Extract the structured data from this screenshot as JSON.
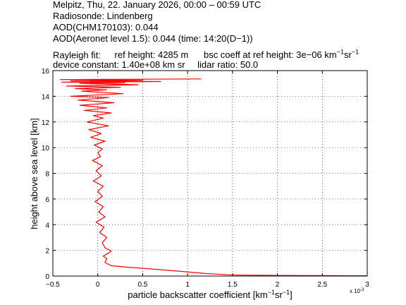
{
  "header": {
    "line1": "Melpitz, Thu, 22. January 2026, 00:00 – 00:59 UTC",
    "line2": "Radiosonde: Lindenberg",
    "line3": "AOD(CHM170103): 0.044",
    "line4": "AOD(Aeronet level 1.5): 0.044   (time: 14:20(D−1))",
    "rayleigh_label": "Rayleigh fit:",
    "ref_height": "ref height: 4285 m",
    "bsc_coeff_text": "bsc coeff at ref height: 3e−06 km",
    "bsc_unit_km_exp": "−1",
    "bsc_unit_sr": "sr",
    "bsc_unit_sr_exp": "−1",
    "device_constant": "device constant: 1.40e+08 km sr",
    "lidar_ratio": "lidar ratio: 50.0"
  },
  "chart_data": {
    "type": "line",
    "xlabel_main": "particle backscatter coefficient [km",
    "xlabel_exp1": "−1",
    "xlabel_mid": "sr",
    "xlabel_exp2": "−1",
    "xlabel_end": "]",
    "ylabel": "height above sea level [km]",
    "x_multiplier": "x 10",
    "x_multiplier_exp": "-3",
    "xlim": [
      -0.5,
      3
    ],
    "ylim": [
      0,
      16
    ],
    "xticks": [
      "−0.5",
      "0",
      "0.5",
      "1",
      "1.5",
      "2",
      "2.5",
      "3"
    ],
    "xtick_values": [
      -0.5,
      0,
      0.5,
      1,
      1.5,
      2,
      2.5,
      3
    ],
    "yticks": [
      "0",
      "2",
      "4",
      "6",
      "8",
      "10",
      "12",
      "14",
      "16"
    ],
    "ytick_values": [
      0,
      2,
      4,
      6,
      8,
      10,
      12,
      14,
      16
    ],
    "grid": true,
    "line_color": "#ff0000",
    "series": [
      {
        "x": [
          3.0,
          2.5,
          2.0,
          1.6,
          1.45,
          1.2,
          0.9,
          0.6,
          0.35,
          0.15,
          0.08,
          0.1,
          0.06,
          0.12,
          0.15,
          0.08,
          0.05,
          0.1,
          0.02,
          0.07,
          -0.02,
          0.08,
          0.01,
          0.06,
          -0.03,
          0.05,
          0.0,
          0.06,
          -0.05,
          0.04,
          -0.02,
          0.05,
          -0.06,
          0.03,
          0.0,
          0.05,
          -0.04,
          0.08,
          -0.08,
          0.04,
          -0.1,
          0.12,
          -0.12,
          0.06,
          -0.05,
          0.15,
          -0.15,
          0.1,
          -0.2,
          0.18,
          -0.22,
          0.12,
          -0.3,
          0.28,
          -0.18,
          0.1,
          -0.25,
          0.25,
          -0.35,
          0.45,
          -0.2,
          0.3,
          -0.4,
          0.7,
          -0.3,
          0.5,
          -0.42,
          1.15
        ],
        "y": [
          0.02,
          0.04,
          0.05,
          0.07,
          0.1,
          0.2,
          0.38,
          0.55,
          0.68,
          0.8,
          1.05,
          1.35,
          1.55,
          1.8,
          1.95,
          2.2,
          2.6,
          3.0,
          3.4,
          3.8,
          4.2,
          4.6,
          5.0,
          5.4,
          5.8,
          6.2,
          6.6,
          7.0,
          7.4,
          7.8,
          8.2,
          8.6,
          9.0,
          9.3,
          9.6,
          9.9,
          10.2,
          10.5,
          10.8,
          11.1,
          11.4,
          11.7,
          12.0,
          12.3,
          12.5,
          12.7,
          12.9,
          13.1,
          13.3,
          13.5,
          13.7,
          13.9,
          14.0,
          14.2,
          14.4,
          14.5,
          14.6,
          14.7,
          14.8,
          14.9,
          15.0,
          15.05,
          15.1,
          15.15,
          15.2,
          15.25,
          15.3,
          15.35
        ]
      }
    ]
  }
}
